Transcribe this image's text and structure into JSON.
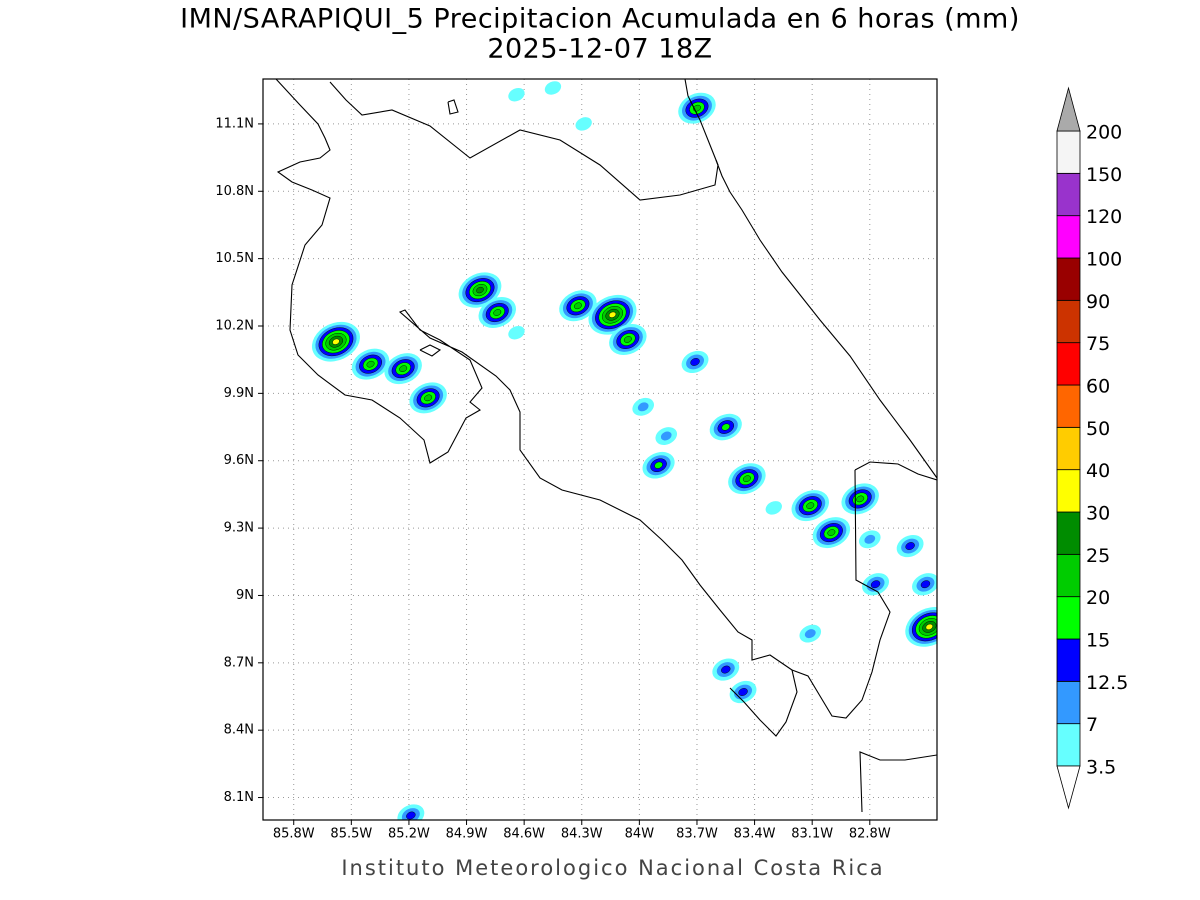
{
  "title": "IMN/SARAPIQUI_5 Precipitacion Acumulada en 6 horas (mm)",
  "subtitle": "2025-12-07 18Z",
  "footer": "Instituto Meteorologico Nacional Costa Rica",
  "map": {
    "xlim": [
      -85.96,
      -82.45
    ],
    "ylim": [
      8.0,
      11.3
    ],
    "grid": true,
    "xticks": [
      {
        "value": -85.8,
        "label": "85.8W"
      },
      {
        "value": -85.5,
        "label": "85.5W"
      },
      {
        "value": -85.2,
        "label": "85.2W"
      },
      {
        "value": -84.9,
        "label": "84.9W"
      },
      {
        "value": -84.6,
        "label": "84.6W"
      },
      {
        "value": -84.3,
        "label": "84.3W"
      },
      {
        "value": -84.0,
        "label": "84W"
      },
      {
        "value": -83.7,
        "label": "83.7W"
      },
      {
        "value": -83.4,
        "label": "83.4W"
      },
      {
        "value": -83.1,
        "label": "83.1W"
      },
      {
        "value": -82.8,
        "label": "82.8W"
      }
    ],
    "yticks": [
      {
        "value": 8.1,
        "label": "8.1N"
      },
      {
        "value": 8.4,
        "label": "8.4N"
      },
      {
        "value": 8.7,
        "label": "8.7N"
      },
      {
        "value": 9.0,
        "label": "9N"
      },
      {
        "value": 9.3,
        "label": "9.3N"
      },
      {
        "value": 9.6,
        "label": "9.6N"
      },
      {
        "value": 9.9,
        "label": "9.9N"
      },
      {
        "value": 10.2,
        "label": "10.2N"
      },
      {
        "value": 10.5,
        "label": "10.5N"
      },
      {
        "value": 10.8,
        "label": "10.8N"
      },
      {
        "value": 11.1,
        "label": "11.1N"
      }
    ],
    "cells": [
      {
        "lon": -85.58,
        "lat": 10.13,
        "peak": 32
      },
      {
        "lon": -85.4,
        "lat": 10.03,
        "peak": 22
      },
      {
        "lon": -85.23,
        "lat": 10.01,
        "peak": 22
      },
      {
        "lon": -85.1,
        "lat": 9.88,
        "peak": 22
      },
      {
        "lon": -84.83,
        "lat": 10.36,
        "peak": 27
      },
      {
        "lon": -84.74,
        "lat": 10.26,
        "peak": 20
      },
      {
        "lon": -84.32,
        "lat": 10.29,
        "peak": 20
      },
      {
        "lon": -84.14,
        "lat": 10.25,
        "peak": 30
      },
      {
        "lon": -84.06,
        "lat": 10.14,
        "peak": 20
      },
      {
        "lon": -83.71,
        "lat": 10.04,
        "peak": 14
      },
      {
        "lon": -83.7,
        "lat": 11.17,
        "peak": 22
      },
      {
        "lon": -83.98,
        "lat": 9.84,
        "peak": 8
      },
      {
        "lon": -83.86,
        "lat": 9.71,
        "peak": 8
      },
      {
        "lon": -83.9,
        "lat": 9.58,
        "peak": 18
      },
      {
        "lon": -83.55,
        "lat": 9.75,
        "peak": 18
      },
      {
        "lon": -83.44,
        "lat": 9.52,
        "peak": 20
      },
      {
        "lon": -83.11,
        "lat": 9.4,
        "peak": 22
      },
      {
        "lon": -83.0,
        "lat": 9.28,
        "peak": 20
      },
      {
        "lon": -82.85,
        "lat": 9.43,
        "peak": 20
      },
      {
        "lon": -82.59,
        "lat": 9.22,
        "peak": 14
      },
      {
        "lon": -82.51,
        "lat": 9.05,
        "peak": 14
      },
      {
        "lon": -82.49,
        "lat": 8.86,
        "peak": 35
      },
      {
        "lon": -82.77,
        "lat": 9.05,
        "peak": 14
      },
      {
        "lon": -83.55,
        "lat": 8.67,
        "peak": 14
      },
      {
        "lon": -83.46,
        "lat": 8.57,
        "peak": 13
      },
      {
        "lon": -83.11,
        "lat": 8.83,
        "peak": 8
      },
      {
        "lon": -85.19,
        "lat": 8.02,
        "peak": 14
      },
      {
        "lon": -84.64,
        "lat": 11.23,
        "peak": 5
      },
      {
        "lon": -84.29,
        "lat": 11.1,
        "peak": 5
      },
      {
        "lon": -84.64,
        "lat": 10.17,
        "peak": 5
      },
      {
        "lon": -84.45,
        "lat": 11.26,
        "peak": 5
      },
      {
        "lon": -83.3,
        "lat": 9.39,
        "peak": 6
      },
      {
        "lon": -82.8,
        "lat": 9.25,
        "peak": 12
      }
    ]
  },
  "colorbar": {
    "levels": [
      3.5,
      7,
      12.5,
      15,
      20,
      25,
      30,
      40,
      50,
      60,
      75,
      90,
      100,
      120,
      150,
      200
    ],
    "colors": [
      "#66ffff",
      "#3399ff",
      "#0000ff",
      "#00ff00",
      "#00cc00",
      "#008c00",
      "#ffff00",
      "#ffcc00",
      "#ff6600",
      "#ff0000",
      "#cc3300",
      "#990000",
      "#ff00ff",
      "#9933cc",
      "#f5f5f5"
    ],
    "under_color": "#ffffff",
    "over_color": "#aaaaaa"
  }
}
